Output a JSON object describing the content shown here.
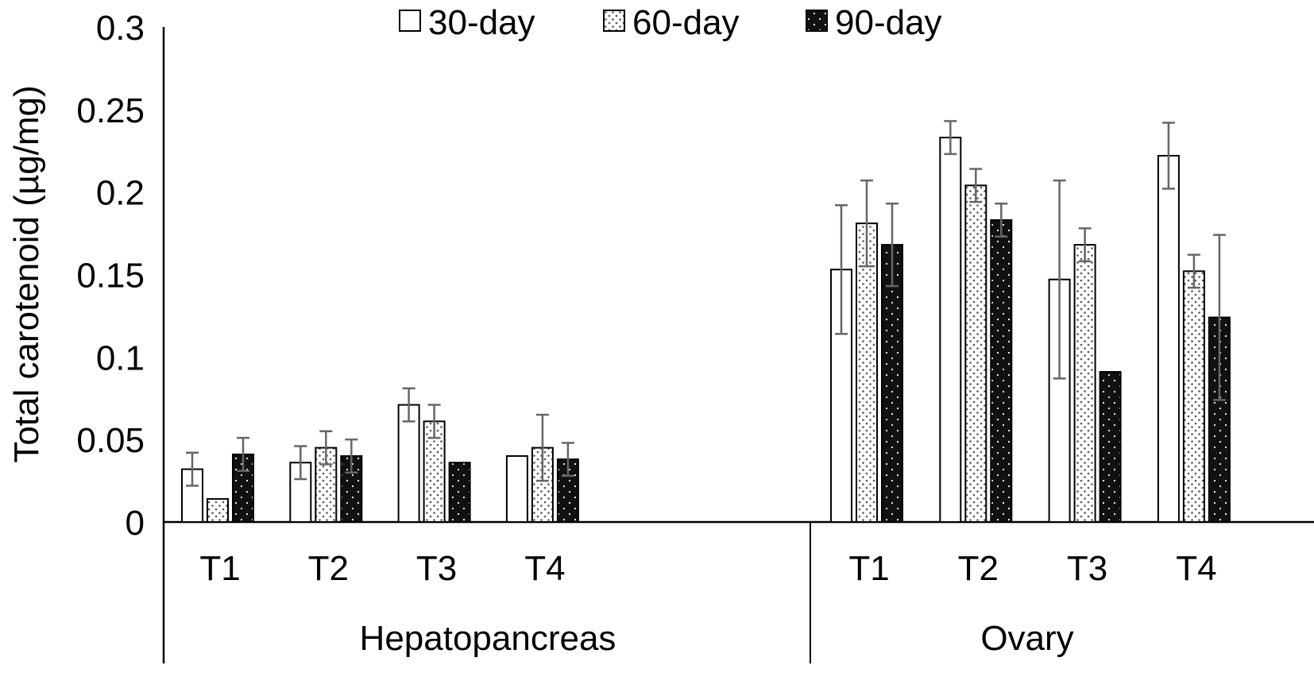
{
  "chart_data": {
    "type": "bar",
    "title": "",
    "xlabel": "",
    "ylabel": "Total carotenoid (µg/mg)",
    "ylim": [
      0,
      0.3
    ],
    "yticks": [
      "0",
      "0.05",
      "0.1",
      "0.15",
      "0.2",
      "0.25",
      "0.3"
    ],
    "ytick_values": [
      0,
      0.05,
      0.1,
      0.15,
      0.2,
      0.25,
      0.3
    ],
    "grid": false,
    "legend_position": "top-center",
    "groups": [
      "Hepatopancreas",
      "Ovary"
    ],
    "categories": [
      "T1",
      "T2",
      "T3",
      "T4"
    ],
    "series": [
      {
        "name": "30-day",
        "pattern": "open",
        "values": [
          [
            0.032,
            0.036,
            0.071,
            0.04
          ],
          [
            0.153,
            0.233,
            0.147,
            0.222
          ]
        ],
        "errors": [
          [
            0.01,
            0.01,
            0.01,
            0.0
          ],
          [
            0.039,
            0.01,
            0.06,
            0.02
          ]
        ]
      },
      {
        "name": "60-day",
        "pattern": "dotted-light",
        "values": [
          [
            0.014,
            0.045,
            0.061,
            0.045
          ],
          [
            0.181,
            0.204,
            0.168,
            0.152
          ]
        ],
        "errors": [
          [
            0.0,
            0.01,
            0.01,
            0.02
          ],
          [
            0.026,
            0.01,
            0.01,
            0.01
          ]
        ]
      },
      {
        "name": "90-day",
        "pattern": "dotted-dark",
        "values": [
          [
            0.041,
            0.04,
            0.036,
            0.038
          ],
          [
            0.168,
            0.183,
            0.091,
            0.124
          ]
        ],
        "errors": [
          [
            0.01,
            0.01,
            0.0,
            0.01
          ],
          [
            0.025,
            0.01,
            0.0,
            0.05
          ]
        ]
      }
    ],
    "colors": {
      "axis": "#000000",
      "bar_edge": "#000000",
      "open_fill": "#ffffff",
      "light_fill": "#ffffff",
      "light_dot": "#555555",
      "dark_fill": "#111111",
      "dark_dot": "#ffffff",
      "error_bar": "#666666"
    }
  }
}
